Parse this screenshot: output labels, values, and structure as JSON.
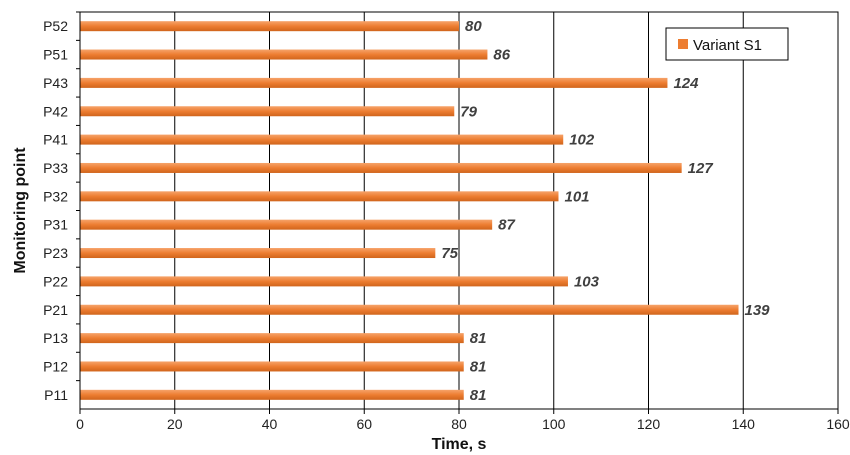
{
  "chart_data": {
    "type": "bar",
    "orientation": "horizontal",
    "categories": [
      "P52",
      "P51",
      "P43",
      "P42",
      "P41",
      "P33",
      "P32",
      "P31",
      "P23",
      "P22",
      "P21",
      "P13",
      "P12",
      "P11"
    ],
    "series": [
      {
        "name": "Variant S1",
        "color": "#ED7D31",
        "values": [
          80,
          86,
          124,
          79,
          102,
          127,
          101,
          87,
          75,
          103,
          139,
          81,
          81,
          81
        ]
      }
    ],
    "xlabel": "Time, s",
    "ylabel": "Monitoring point",
    "xlim": [
      0,
      160
    ],
    "xticks": [
      0,
      20,
      40,
      60,
      80,
      100,
      120,
      140,
      160
    ],
    "grid": "vertical",
    "legend_position": "top-right",
    "data_labels": true
  }
}
